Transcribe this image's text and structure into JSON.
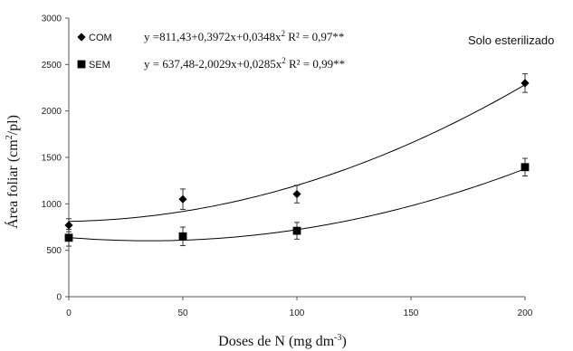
{
  "chart_data": {
    "type": "scatter",
    "title": "",
    "annotation": "Solo esterilizado",
    "xlabel": "Doses de N (mg dm",
    "xlabel_sup": "-3",
    "xlabel_close": ")",
    "ylabel": "Área foliar (cm",
    "ylabel_sup": "2",
    "ylabel_close": "/pl)",
    "xlim": [
      0,
      200
    ],
    "ylim": [
      0,
      3000
    ],
    "x_ticks": [
      0,
      50,
      100,
      150,
      200
    ],
    "y_ticks": [
      0,
      500,
      1000,
      1500,
      2000,
      2500,
      3000
    ],
    "grid": false,
    "legend_position": "top-left",
    "series": [
      {
        "name": "COM",
        "marker": "diamond",
        "color": "#000000",
        "x": [
          0,
          50,
          100,
          200
        ],
        "y": [
          770,
          1050,
          1105,
          2300
        ],
        "error": [
          70,
          110,
          95,
          100
        ],
        "equation": "y =811,43+0,3972x+0,0348x",
        "eq_power": "2",
        "r2": "R² = 0,97**",
        "fit": {
          "a": 811.43,
          "b": 0.3972,
          "c": 0.0348
        }
      },
      {
        "name": "SEM",
        "marker": "square",
        "color": "#000000",
        "x": [
          0,
          50,
          100,
          200
        ],
        "y": [
          635,
          650,
          710,
          1395
        ],
        "error": [
          90,
          100,
          90,
          95
        ],
        "equation": "y = 637,48-2,0029x+0,0285x",
        "eq_power": "2",
        "r2": "R² = 0,99**",
        "fit": {
          "a": 637.48,
          "b": -2.0029,
          "c": 0.0285
        }
      }
    ]
  }
}
